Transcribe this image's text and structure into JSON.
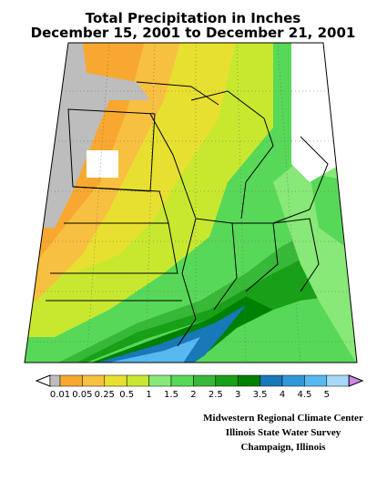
{
  "title": [
    "Total Precipitation in Inches",
    "December 15, 2001 to December 21, 2001"
  ],
  "legend": {
    "labels": [
      "0.01",
      "0.05",
      "0.25",
      "0.5",
      "1",
      "1.5",
      "2",
      "2.5",
      "3",
      "3.5",
      "4",
      "4.5",
      "5"
    ],
    "colors": [
      "#bdbdbd",
      "#f8a830",
      "#f8c040",
      "#e8e030",
      "#c8e830",
      "#88e878",
      "#58d858",
      "#38b838",
      "#18a018",
      "#008000",
      "#1878b8",
      "#3098d8",
      "#58b8f0",
      "#a8d8f8"
    ],
    "low_color": "#ffffff",
    "high_color": "#d088e8"
  },
  "credits": [
    "Midwestern Regional Climate Center",
    "Illinois State Water Survey",
    "Champaign, Illinois"
  ]
}
